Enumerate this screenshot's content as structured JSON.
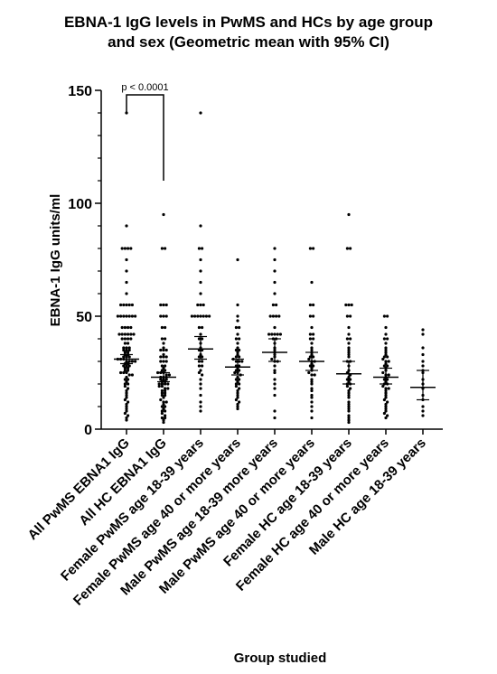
{
  "chart_data": {
    "type": "scatter",
    "title_lines": [
      "EBNA-1 IgG levels in PwMS and HCs by age group",
      "and sex (Geometric mean with 95% CI)"
    ],
    "xlabel": "Group studied",
    "ylabel": "EBNA-1 IgG units/ml",
    "ylim": [
      0,
      150
    ],
    "yticks": [
      0,
      50,
      100,
      150
    ],
    "grid": false,
    "annotation": {
      "text": "p < 0.0001",
      "between": [
        0,
        1
      ]
    },
    "categories": [
      "All PwMS EBNA1 IgG",
      "All HC EBNA1 IgG",
      "Female PwMS age 18-39 years",
      "Female PwMS age 40 or more years",
      "Male PwMS age 18-39 more years",
      "Male PwMS age 40 or more years",
      "Female HC age 18-39 years",
      "Female HC age 40 or more years",
      "Male HC age 18-39 years"
    ],
    "summary": [
      {
        "mean": 31,
        "ci": [
          29,
          33
        ]
      },
      {
        "mean": 23,
        "ci": [
          21,
          25
        ]
      },
      {
        "mean": 35.5,
        "ci": [
          31,
          41
        ]
      },
      {
        "mean": 27.5,
        "ci": [
          24,
          31
        ]
      },
      {
        "mean": 34,
        "ci": [
          30,
          40
        ]
      },
      {
        "mean": 30,
        "ci": [
          26,
          34
        ]
      },
      {
        "mean": 24.5,
        "ci": [
          20,
          30
        ]
      },
      {
        "mean": 23,
        "ci": [
          20,
          27
        ]
      },
      {
        "mean": 18.5,
        "ci": [
          13,
          26
        ]
      }
    ],
    "points": [
      [
        140,
        90,
        80,
        80,
        80,
        80,
        75,
        70,
        65,
        60,
        55,
        55,
        55,
        55,
        55,
        50,
        50,
        50,
        50,
        50,
        50,
        50,
        45,
        45,
        45,
        45,
        42,
        42,
        42,
        42,
        42,
        42,
        40,
        40,
        40,
        40,
        38,
        38,
        36,
        36,
        36,
        35,
        35,
        35,
        34,
        34,
        33,
        33,
        32,
        32,
        32,
        31,
        31,
        31,
        30,
        30,
        30,
        30,
        29,
        29,
        28,
        28,
        28,
        27,
        27,
        26,
        26,
        25,
        25,
        25,
        24,
        24,
        23,
        22,
        22,
        21,
        20,
        20,
        19,
        18,
        17,
        16,
        15,
        14,
        13,
        12,
        11,
        10,
        9,
        8,
        7,
        6,
        5,
        4
      ],
      [
        95,
        80,
        80,
        55,
        55,
        55,
        50,
        50,
        50,
        45,
        45,
        40,
        40,
        38,
        36,
        35,
        35,
        35,
        33,
        32,
        32,
        32,
        30,
        30,
        30,
        28,
        28,
        27,
        26,
        26,
        25,
        25,
        25,
        24,
        24,
        23,
        23,
        23,
        22,
        22,
        22,
        21,
        21,
        20,
        20,
        20,
        20,
        19,
        19,
        18,
        18,
        17,
        17,
        16,
        16,
        15,
        15,
        14,
        13,
        12,
        12,
        11,
        10,
        10,
        9,
        8,
        8,
        7,
        6,
        5,
        5,
        4,
        3
      ],
      [
        140,
        90,
        80,
        80,
        75,
        70,
        65,
        60,
        55,
        55,
        55,
        50,
        50,
        50,
        50,
        50,
        50,
        50,
        45,
        45,
        42,
        40,
        40,
        38,
        36,
        35,
        35,
        33,
        32,
        32,
        30,
        30,
        28,
        28,
        26,
        25,
        24,
        22,
        20,
        18,
        15,
        12,
        10,
        8
      ],
      [
        75,
        55,
        50,
        48,
        45,
        45,
        42,
        40,
        40,
        38,
        36,
        35,
        35,
        34,
        33,
        32,
        32,
        31,
        30,
        30,
        30,
        28,
        28,
        27,
        26,
        26,
        25,
        25,
        24,
        23,
        22,
        22,
        21,
        20,
        20,
        19,
        18,
        17,
        16,
        15,
        14,
        13,
        12,
        11,
        10,
        9
      ],
      [
        80,
        75,
        70,
        65,
        60,
        55,
        55,
        50,
        50,
        50,
        50,
        45,
        42,
        42,
        42,
        42,
        42,
        40,
        40,
        38,
        36,
        35,
        34,
        33,
        32,
        31,
        30,
        30,
        28,
        26,
        25,
        22,
        20,
        18,
        15,
        8,
        5
      ],
      [
        80,
        80,
        65,
        55,
        55,
        50,
        50,
        45,
        42,
        42,
        40,
        40,
        38,
        36,
        35,
        34,
        33,
        32,
        32,
        31,
        30,
        30,
        29,
        28,
        28,
        27,
        26,
        25,
        24,
        24,
        22,
        21,
        20,
        18,
        17,
        15,
        14,
        12,
        10,
        8,
        5
      ],
      [
        95,
        80,
        80,
        55,
        55,
        55,
        50,
        50,
        45,
        42,
        40,
        40,
        38,
        36,
        35,
        34,
        33,
        32,
        30,
        30,
        28,
        26,
        25,
        24,
        23,
        22,
        22,
        21,
        20,
        20,
        19,
        18,
        17,
        16,
        15,
        14,
        12,
        11,
        10,
        9,
        8,
        6,
        5,
        4,
        3
      ],
      [
        50,
        50,
        45,
        42,
        40,
        40,
        38,
        36,
        35,
        34,
        33,
        32,
        32,
        31,
        30,
        30,
        29,
        28,
        28,
        27,
        26,
        25,
        24,
        24,
        23,
        22,
        22,
        21,
        20,
        20,
        19,
        18,
        18,
        17,
        16,
        15,
        14,
        13,
        12,
        11,
        10,
        9,
        8,
        7,
        6,
        5
      ],
      [
        44,
        42,
        36,
        33,
        30,
        28,
        26,
        25,
        22,
        20,
        18,
        15,
        13,
        10,
        8,
        6
      ]
    ]
  }
}
